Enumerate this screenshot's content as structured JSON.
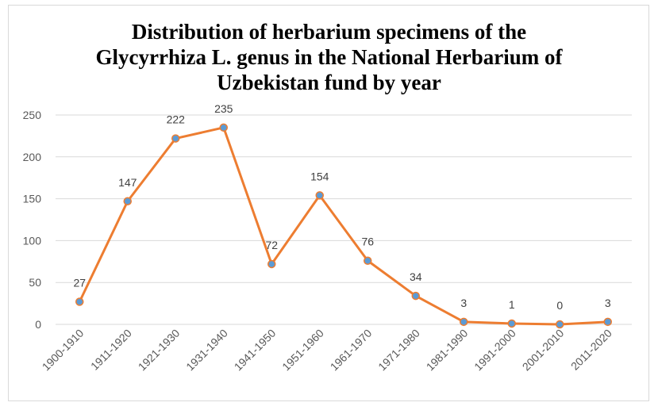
{
  "chart_data": {
    "type": "line",
    "title_lines": [
      "Distribution of herbarium specimens of the",
      "Glycyrrhiza L. genus in the National Herbarium of",
      "Uzbekistan fund by year"
    ],
    "categories": [
      "1900-1910",
      "1911-1920",
      "1921-1930",
      "1931-1940",
      "1941-1950",
      "1951-1960",
      "1961-1970",
      "1971-1980",
      "1981-1990",
      "1991-2000",
      "2001-2010",
      "2011-2020"
    ],
    "series": [
      {
        "values": [
          27,
          147,
          222,
          235,
          72,
          154,
          76,
          34,
          3,
          1,
          0,
          3
        ]
      }
    ],
    "ylim": [
      0,
      250
    ],
    "yticks": [
      "0",
      "50",
      "100",
      "150",
      "200",
      "250"
    ],
    "grid": true,
    "line_color": "#ED7D31",
    "marker_color": "#5B9BD5",
    "legend": "none"
  }
}
